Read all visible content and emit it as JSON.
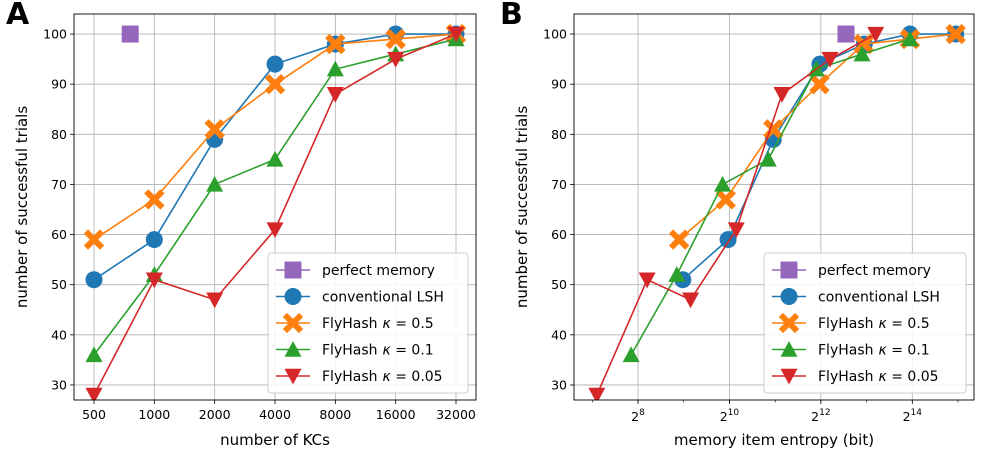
{
  "colors": {
    "perfect": "#9467bd",
    "conventional": "#1f77b4",
    "fh05": "#ff7f0e",
    "fh01": "#2ca02c",
    "fh005": "#d62728"
  },
  "chart_data": [
    {
      "panel": "A",
      "type": "line",
      "xscale": "categorical",
      "categories": [
        "500",
        "1000",
        "2000",
        "4000",
        "8000",
        "16000",
        "32000"
      ],
      "xlabel": "number of KCs",
      "ylabel": "number of successful trials",
      "ylim": [
        27,
        104
      ],
      "yticks": [
        30,
        40,
        50,
        60,
        70,
        80,
        90,
        100
      ],
      "grid": true,
      "legend_position": "bottom-right",
      "series": [
        {
          "name": "perfect memory",
          "key": "perfect",
          "marker": "square",
          "x": [
            0.6
          ],
          "values": [
            100
          ]
        },
        {
          "name": "conventional LSH",
          "key": "conventional",
          "marker": "circle",
          "values": [
            51,
            59,
            79,
            94,
            98,
            100,
            100
          ]
        },
        {
          "name": "FlyHash",
          "kappa_label": "κ = 0.5",
          "key": "fh05",
          "marker": "x",
          "values": [
            59,
            67,
            81,
            90,
            98,
            99,
            100
          ]
        },
        {
          "name": "FlyHash",
          "kappa_label": "κ = 0.1",
          "key": "fh01",
          "marker": "triangle-up",
          "values": [
            36,
            52,
            70,
            75,
            93,
            96,
            99
          ]
        },
        {
          "name": "FlyHash",
          "kappa_label": "κ = 0.05",
          "key": "fh005",
          "marker": "triangle-down",
          "values": [
            28,
            51,
            47,
            61,
            88,
            95,
            100
          ]
        }
      ]
    },
    {
      "panel": "B",
      "type": "line",
      "xscale": "log2",
      "xlabel": "memory item entropy (bit)",
      "ylabel": "number of successful trials",
      "xlim_log2": [
        6.6,
        15.35
      ],
      "xticks_exp": [
        8,
        10,
        12,
        14
      ],
      "ylim": [
        27,
        104
      ],
      "yticks": [
        30,
        40,
        50,
        60,
        70,
        80,
        90,
        100
      ],
      "grid": true,
      "legend_position": "bottom-right",
      "series": [
        {
          "name": "perfect memory",
          "key": "perfect",
          "marker": "square",
          "x_log2": [
            12.55
          ],
          "values": [
            100
          ]
        },
        {
          "name": "conventional LSH",
          "key": "conventional",
          "marker": "circle",
          "x_log2": [
            8.98,
            9.97,
            10.96,
            11.98,
            12.95,
            13.95,
            14.95
          ],
          "values": [
            51,
            59,
            79,
            94,
            98,
            100,
            100
          ]
        },
        {
          "name": "FlyHash",
          "kappa_label": "κ = 0.5",
          "key": "fh05",
          "marker": "x",
          "x_log2": [
            8.9,
            9.92,
            10.96,
            11.97,
            12.94,
            13.95,
            14.95
          ],
          "values": [
            59,
            67,
            81,
            90,
            98,
            99,
            100
          ]
        },
        {
          "name": "FlyHash",
          "kappa_label": "κ = 0.1",
          "key": "fh01",
          "marker": "triangle-up",
          "x_log2": [
            7.85,
            8.85,
            9.85,
            10.85,
            11.9,
            12.9,
            13.95
          ],
          "values": [
            36,
            52,
            70,
            75,
            93,
            96,
            99
          ]
        },
        {
          "name": "FlyHash",
          "kappa_label": "κ = 0.05",
          "key": "fh005",
          "marker": "triangle-down",
          "x_log2": [
            7.1,
            8.2,
            9.15,
            10.15,
            11.15,
            12.2,
            13.2
          ],
          "values": [
            28,
            51,
            47,
            61,
            88,
            95,
            100
          ]
        }
      ]
    }
  ]
}
